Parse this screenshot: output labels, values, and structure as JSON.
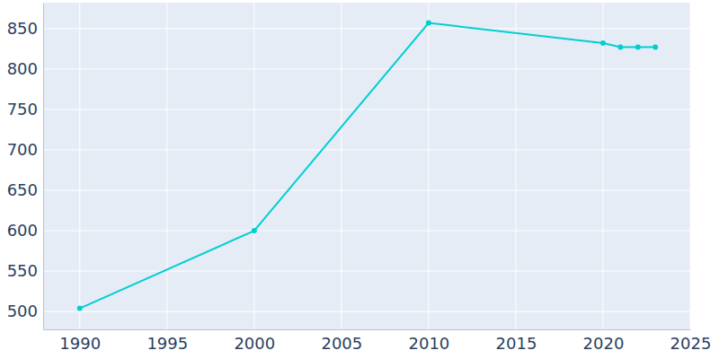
{
  "chart_data": {
    "type": "line",
    "x": [
      1990,
      2000,
      2010,
      2020,
      2021,
      2022,
      2023
    ],
    "values": [
      504,
      600,
      857,
      832,
      827,
      827,
      827
    ],
    "color": "#00cfd1",
    "marker": "circle",
    "xlim": [
      1987.9,
      2025
    ],
    "xticks": [
      1990,
      1995,
      2000,
      2005,
      2010,
      2015,
      2020,
      2025
    ],
    "ylim": [
      478,
      882
    ],
    "yticks": [
      500,
      550,
      600,
      650,
      700,
      750,
      800,
      850
    ],
    "grid": true
  }
}
